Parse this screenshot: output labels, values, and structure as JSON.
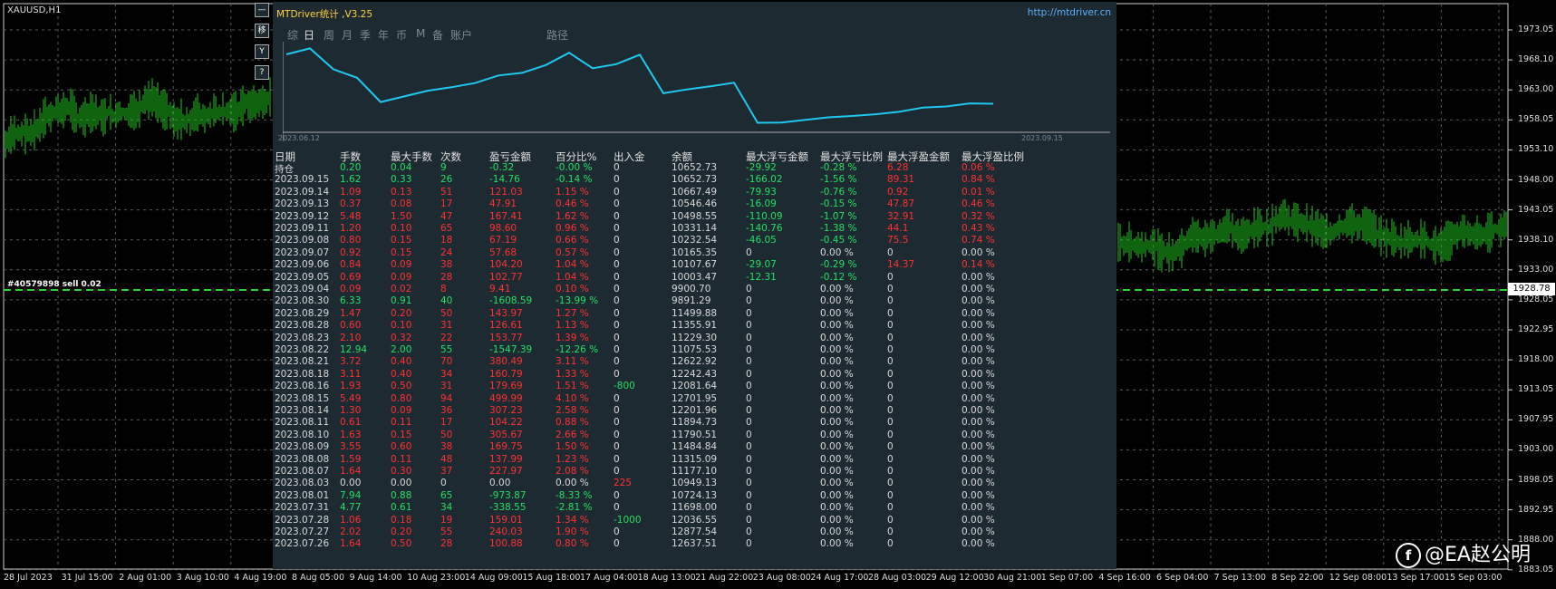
{
  "chart": {
    "symbol": "XAUUSD,H1",
    "trade_label": "#40579898 sell 0.02",
    "current_price": "1928.78",
    "y_labels": [
      "1973.05",
      "1968.10",
      "1963.00",
      "1958.05",
      "1953.10",
      "1948.00",
      "1943.05",
      "1938.10",
      "1933.00",
      "1928.05",
      "1922.95",
      "1918.00",
      "1913.05",
      "1907.95",
      "1903.00",
      "1898.05",
      "1892.95",
      "1888.00",
      "1883.05"
    ],
    "x_labels": [
      "28 Jul 2023",
      "31 Jul 15:00",
      "2 Aug 01:00",
      "3 Aug 10:00",
      "4 Aug 19:00",
      "8 Aug 05:00",
      "9 Aug 14:00",
      "10 Aug 23:00",
      "14 Aug 09:00",
      "15 Aug 18:00",
      "17 Aug 04:00",
      "18 Aug 13:00",
      "21 Aug 22:00",
      "23 Aug 08:00",
      "24 Aug 17:00",
      "28 Aug 03:00",
      "29 Aug 12:00",
      "30 Aug 21:00",
      "1 Sep 07:00",
      "4 Sep 16:00",
      "6 Sep 04:00",
      "7 Sep 13:00",
      "8 Sep 22:00",
      "12 Sep 08:00",
      "13 Sep 17:00",
      "15 Sep 03:00"
    ],
    "colors": {
      "bar": "#22c81e",
      "dash": "#26d626"
    }
  },
  "side_buttons": [
    {
      "icon": "minus-icon",
      "glyph": "—"
    },
    {
      "icon": "bookmark-icon",
      "glyph": "移"
    },
    {
      "icon": "filter-icon",
      "glyph": "Y"
    },
    {
      "icon": "help-icon",
      "glyph": "?"
    }
  ],
  "panel": {
    "title": "MTDriver统计 ,V3.25",
    "url": "http://mtdriver.cn",
    "tabs": [
      "综",
      "日",
      "周",
      "月",
      "季",
      "年",
      "币",
      "M",
      "备",
      "账户",
      "路径"
    ],
    "active_tab": "日",
    "mini_chart": {
      "start_date": "2023.06.12",
      "end_date": "2023.09.15"
    },
    "columns": [
      "日期",
      "手数",
      "最大手数",
      "次数",
      "盈亏金额",
      "百分比%",
      "出入金",
      "余额",
      "最大浮亏金额",
      "最大浮亏比例",
      "最大浮盈金额",
      "最大浮盈比例"
    ],
    "rows": [
      [
        "持仓",
        "0.20",
        "0.04",
        "9",
        "-0.32",
        "-0.00 %",
        "0",
        "10652.73",
        "-29.92",
        "-0.28 %",
        "6.28",
        "0.06 %"
      ],
      [
        "2023.09.15",
        "1.62",
        "0.33",
        "26",
        "-14.76",
        "-0.14 %",
        "0",
        "10652.73",
        "-166.02",
        "-1.56 %",
        "89.31",
        "0.84 %"
      ],
      [
        "2023.09.14",
        "1.09",
        "0.13",
        "51",
        "121.03",
        "1.15 %",
        "0",
        "10667.49",
        "-79.93",
        "-0.76 %",
        "0.92",
        "0.01 %"
      ],
      [
        "2023.09.13",
        "0.37",
        "0.08",
        "17",
        "47.91",
        "0.46 %",
        "0",
        "10546.46",
        "-16.09",
        "-0.15 %",
        "47.87",
        "0.46 %"
      ],
      [
        "2023.09.12",
        "5.48",
        "1.50",
        "47",
        "167.41",
        "1.62 %",
        "0",
        "10498.55",
        "-110.09",
        "-1.07 %",
        "32.91",
        "0.32 %"
      ],
      [
        "2023.09.11",
        "1.20",
        "0.10",
        "65",
        "98.60",
        "0.96 %",
        "0",
        "10331.14",
        "-140.76",
        "-1.38 %",
        "44.1",
        "0.43 %"
      ],
      [
        "2023.09.08",
        "0.80",
        "0.15",
        "18",
        "67.19",
        "0.66 %",
        "0",
        "10232.54",
        "-46.05",
        "-0.45 %",
        "75.5",
        "0.74 %"
      ],
      [
        "2023.09.07",
        "0.92",
        "0.15",
        "24",
        "57.68",
        "0.57 %",
        "0",
        "10165.35",
        "0",
        "0.00 %",
        "0",
        "0.00 %"
      ],
      [
        "2023.09.06",
        "0.84",
        "0.09",
        "38",
        "104.20",
        "1.04 %",
        "0",
        "10107.67",
        "-29.07",
        "-0.29 %",
        "14.37",
        "0.14 %"
      ],
      [
        "2023.09.05",
        "0.69",
        "0.09",
        "28",
        "102.77",
        "1.04 %",
        "0",
        "10003.47",
        "-12.31",
        "-0.12 %",
        "0",
        "0.00 %"
      ],
      [
        "2023.09.04",
        "0.09",
        "0.02",
        "8",
        "9.41",
        "0.10 %",
        "0",
        "9900.70",
        "0",
        "0.00 %",
        "0",
        "0.00 %"
      ],
      [
        "2023.08.30",
        "6.33",
        "0.91",
        "40",
        "-1608.59",
        "-13.99 %",
        "0",
        "9891.29",
        "0",
        "0.00 %",
        "0",
        "0.00 %"
      ],
      [
        "2023.08.29",
        "1.47",
        "0.20",
        "50",
        "143.97",
        "1.27 %",
        "0",
        "11499.88",
        "0",
        "0.00 %",
        "0",
        "0.00 %"
      ],
      [
        "2023.08.28",
        "0.60",
        "0.10",
        "31",
        "126.61",
        "1.13 %",
        "0",
        "11355.91",
        "0",
        "0.00 %",
        "0",
        "0.00 %"
      ],
      [
        "2023.08.23",
        "2.10",
        "0.32",
        "22",
        "153.77",
        "1.39 %",
        "0",
        "11229.30",
        "0",
        "0.00 %",
        "0",
        "0.00 %"
      ],
      [
        "2023.08.22",
        "12.94",
        "2.00",
        "55",
        "-1547.39",
        "-12.26 %",
        "0",
        "11075.53",
        "0",
        "0.00 %",
        "0",
        "0.00 %"
      ],
      [
        "2023.08.21",
        "3.72",
        "0.40",
        "70",
        "380.49",
        "3.11 %",
        "0",
        "12622.92",
        "0",
        "0.00 %",
        "0",
        "0.00 %"
      ],
      [
        "2023.08.18",
        "3.11",
        "0.40",
        "34",
        "160.79",
        "1.33 %",
        "0",
        "12242.43",
        "0",
        "0.00 %",
        "0",
        "0.00 %"
      ],
      [
        "2023.08.16",
        "1.93",
        "0.50",
        "31",
        "179.69",
        "1.51 %",
        "-800",
        "12081.64",
        "0",
        "0.00 %",
        "0",
        "0.00 %"
      ],
      [
        "2023.08.15",
        "5.49",
        "0.80",
        "94",
        "499.99",
        "4.10 %",
        "0",
        "12701.95",
        "0",
        "0.00 %",
        "0",
        "0.00 %"
      ],
      [
        "2023.08.14",
        "1.30",
        "0.09",
        "36",
        "307.23",
        "2.58 %",
        "0",
        "12201.96",
        "0",
        "0.00 %",
        "0",
        "0.00 %"
      ],
      [
        "2023.08.11",
        "0.61",
        "0.11",
        "17",
        "104.22",
        "0.88 %",
        "0",
        "11894.73",
        "0",
        "0.00 %",
        "0",
        "0.00 %"
      ],
      [
        "2023.08.10",
        "1.63",
        "0.15",
        "50",
        "305.67",
        "2.66 %",
        "0",
        "11790.51",
        "0",
        "0.00 %",
        "0",
        "0.00 %"
      ],
      [
        "2023.08.09",
        "3.55",
        "0.60",
        "38",
        "169.75",
        "1.50 %",
        "0",
        "11484.84",
        "0",
        "0.00 %",
        "0",
        "0.00 %"
      ],
      [
        "2023.08.08",
        "1.59",
        "0.11",
        "48",
        "137.99",
        "1.23 %",
        "0",
        "11315.09",
        "0",
        "0.00 %",
        "0",
        "0.00 %"
      ],
      [
        "2023.08.07",
        "1.64",
        "0.30",
        "37",
        "227.97",
        "2.08 %",
        "0",
        "11177.10",
        "0",
        "0.00 %",
        "0",
        "0.00 %"
      ],
      [
        "2023.08.03",
        "0.00",
        "0.00",
        "0",
        "0.00",
        "0.00 %",
        "225",
        "10949.13",
        "0",
        "0.00 %",
        "0",
        "0.00 %"
      ],
      [
        "2023.08.01",
        "7.94",
        "0.88",
        "65",
        "-973.87",
        "-8.33 %",
        "0",
        "10724.13",
        "0",
        "0.00 %",
        "0",
        "0.00 %"
      ],
      [
        "2023.07.31",
        "4.77",
        "0.61",
        "34",
        "-338.55",
        "-2.81 %",
        "0",
        "11698.00",
        "0",
        "0.00 %",
        "0",
        "0.00 %"
      ],
      [
        "2023.07.28",
        "1.06",
        "0.18",
        "19",
        "159.01",
        "1.34 %",
        "-1000",
        "12036.55",
        "0",
        "0.00 %",
        "0",
        "0.00 %"
      ],
      [
        "2023.07.27",
        "2.02",
        "0.20",
        "55",
        "240.03",
        "1.90 %",
        "0",
        "12877.54",
        "0",
        "0.00 %",
        "0",
        "0.00 %"
      ],
      [
        "2023.07.26",
        "1.64",
        "0.50",
        "28",
        "100.88",
        "0.80 %",
        "0",
        "12637.51",
        "0",
        "0.00 %",
        "0",
        "0.00 %"
      ]
    ],
    "colors": {
      "profit": "#ff3030",
      "loss": "#22e060",
      "neutral": "#d8d8d8",
      "title": "#ffd040",
      "url": "#5ab0ff",
      "equity_line": "#1ec8f0"
    }
  },
  "watermark": {
    "icon": "facebook-icon",
    "text": "@EA赵公明"
  }
}
